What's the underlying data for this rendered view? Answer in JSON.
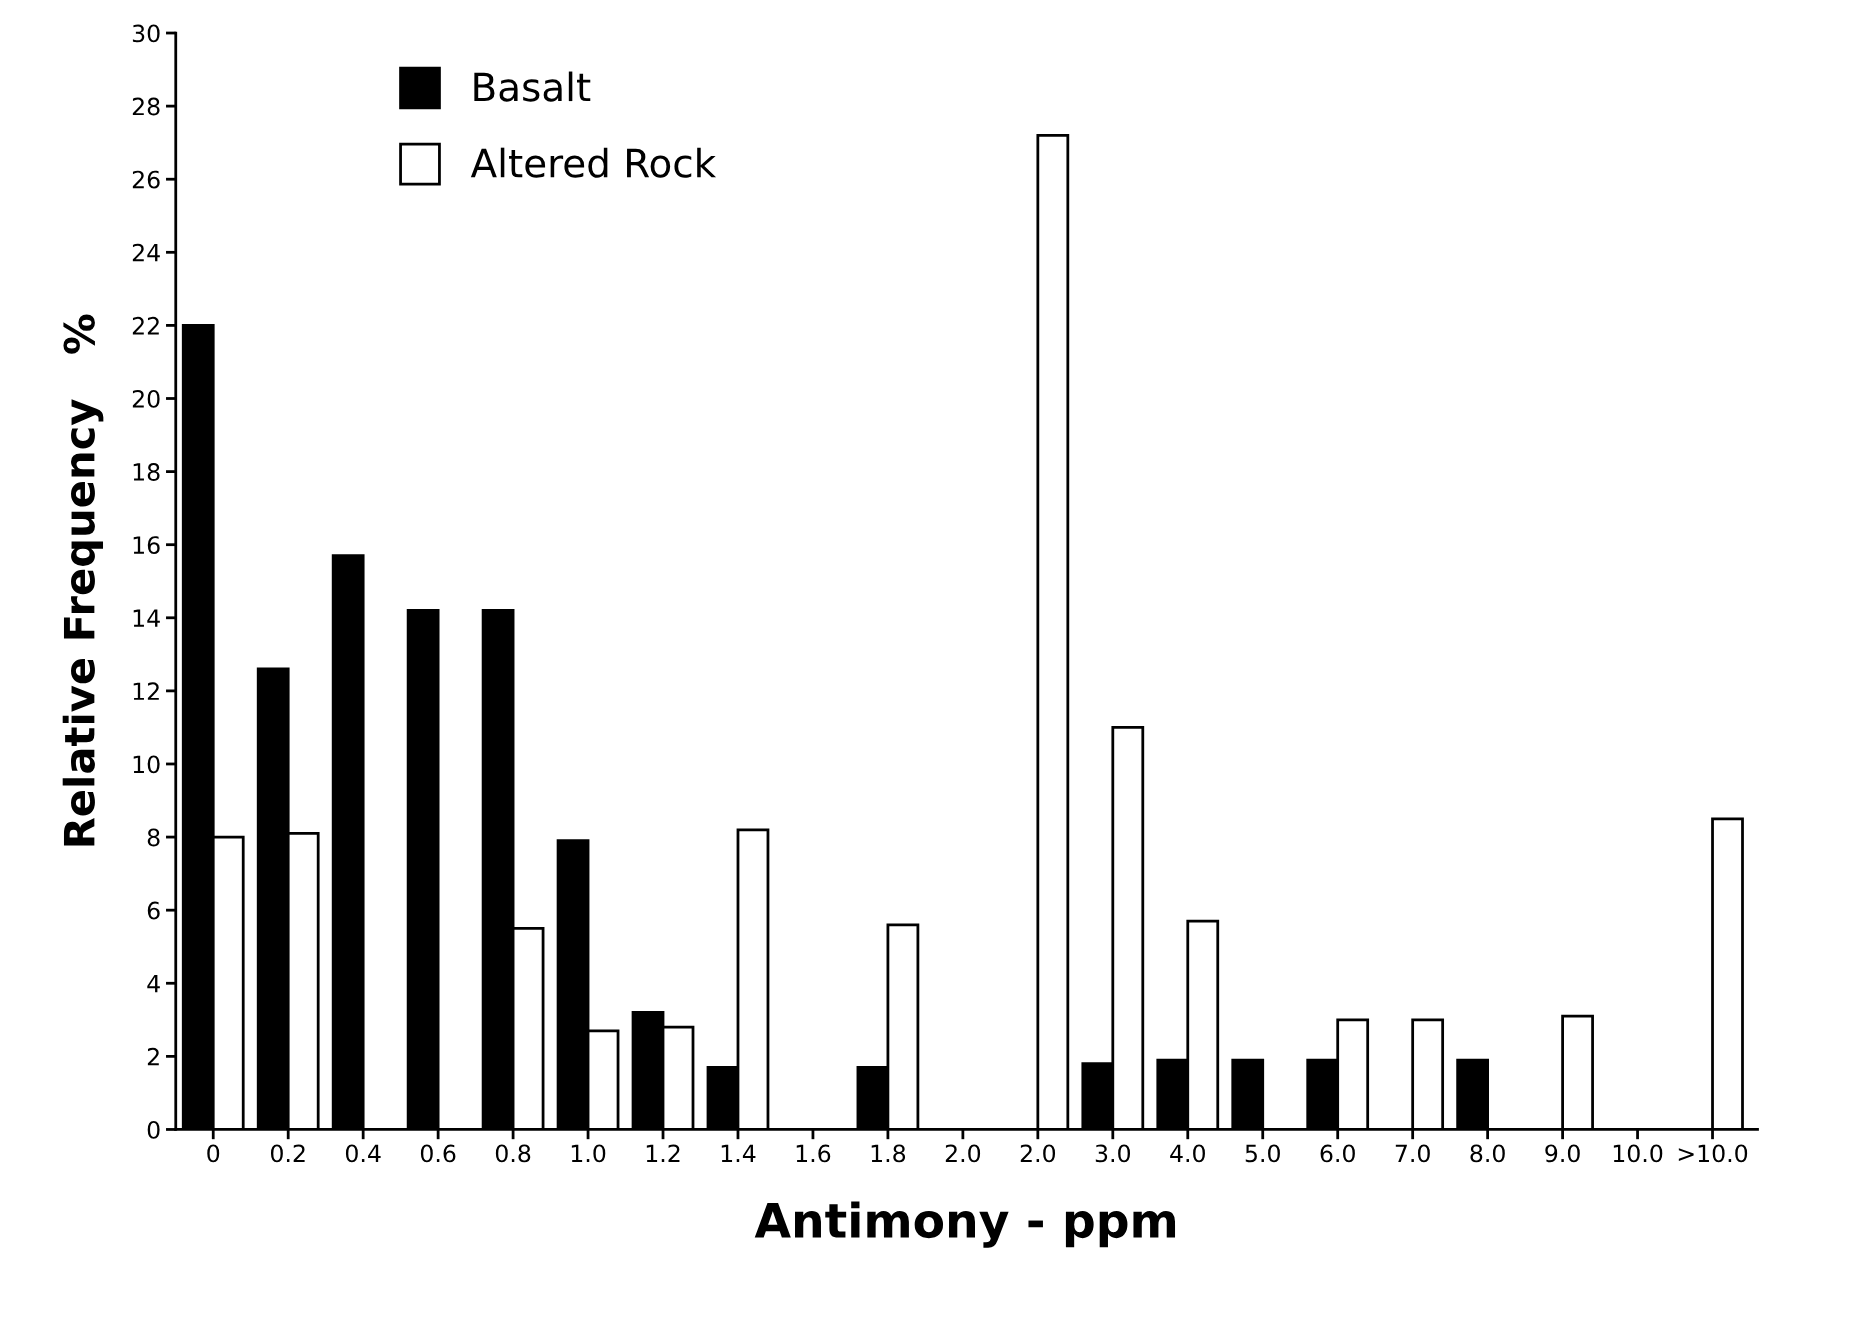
{
  "chart_data": {
    "type": "bar",
    "xlabel": "Antimony - ppm",
    "ylabel": "Relative Frequency   %",
    "categories": [
      "0",
      "0.2",
      "0.4",
      "0.6",
      "0.8",
      "1.0",
      "1.2",
      "1.4",
      "1.6",
      "1.8",
      "2.0",
      "2.0",
      "3.0",
      "4.0",
      "5.0",
      "6.0",
      "7.0",
      "8.0",
      "9.0",
      "10.0",
      ">10.0"
    ],
    "series": [
      {
        "name": "Basalt",
        "color": "#000000",
        "values": [
          22,
          12.6,
          15.7,
          14.2,
          14.2,
          7.9,
          3.2,
          1.7,
          null,
          1.7,
          null,
          null,
          1.8,
          1.9,
          1.9,
          1.9,
          null,
          1.9,
          null,
          null,
          null
        ]
      },
      {
        "name": "Altered Rock",
        "color": "#ffffff",
        "values": [
          8.0,
          8.1,
          null,
          null,
          5.5,
          2.7,
          2.8,
          8.2,
          null,
          5.6,
          null,
          27.2,
          11.0,
          5.7,
          null,
          3.0,
          3.0,
          null,
          3.1,
          null,
          8.5
        ]
      }
    ],
    "ylim": [
      0,
      30
    ],
    "yticks": [
      0,
      2,
      4,
      6,
      8,
      10,
      12,
      14,
      16,
      18,
      20,
      22,
      24,
      26,
      28,
      30
    ],
    "grid": false,
    "legend": "top left"
  }
}
